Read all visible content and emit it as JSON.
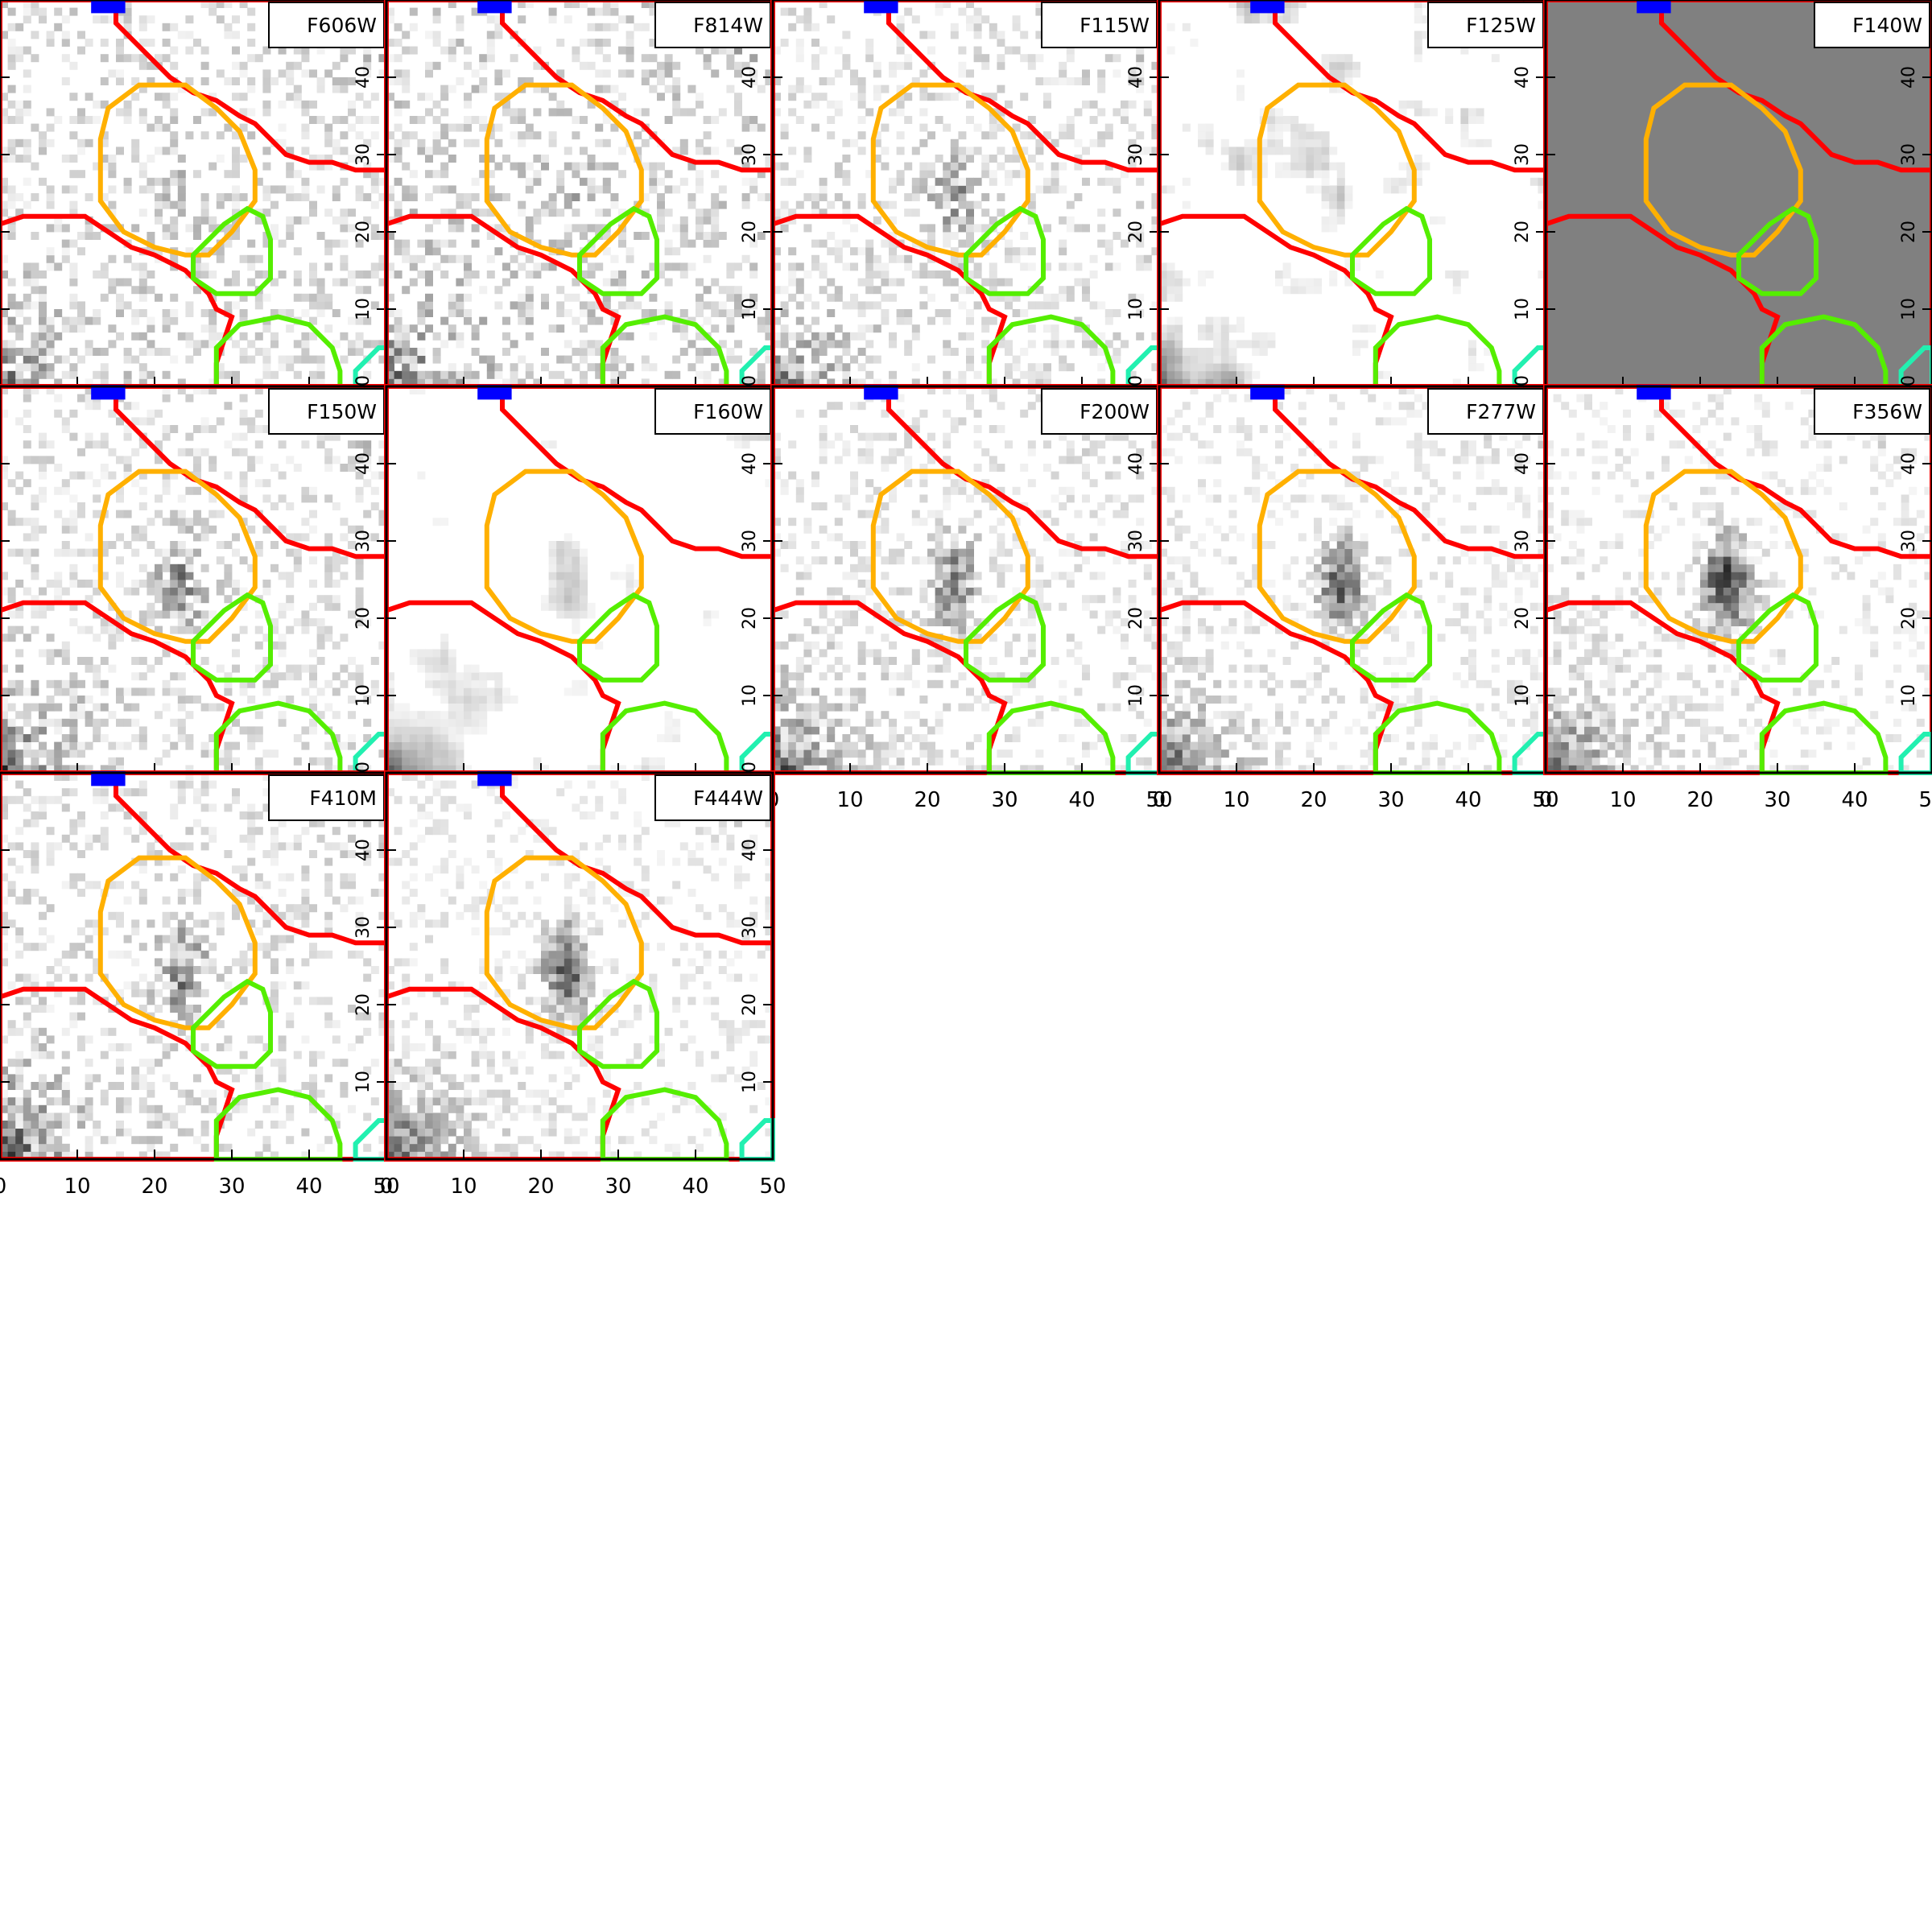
{
  "figure": {
    "description_free": true,
    "colors": {
      "background": "#ffffff",
      "frame": "#000000",
      "segmap_red": "#ff0000",
      "segmap_orange": "#ffb000",
      "segmap_green": "#55ee00",
      "segmap_blue": "#0000ff",
      "segmap_cyan": "#22f0b0",
      "label_box": "#ffffff",
      "f140w_fill": "#808080"
    }
  },
  "chart_data": [
    {
      "type": "heatmap",
      "panel_label": "F606W",
      "xlim": [
        0,
        50
      ],
      "ylim": [
        0,
        50
      ],
      "noise_level": 0.45,
      "source_strength": 0.15,
      "corner_glow": 0.55,
      "smooth": false,
      "flat": false
    },
    {
      "type": "heatmap",
      "panel_label": "F814W",
      "xlim": [
        0,
        50
      ],
      "ylim": [
        0,
        50
      ],
      "noise_level": 0.5,
      "source_strength": 0.15,
      "corner_glow": 0.6,
      "smooth": false,
      "flat": false
    },
    {
      "type": "heatmap",
      "panel_label": "F115W",
      "xlim": [
        0,
        50
      ],
      "ylim": [
        0,
        50
      ],
      "noise_level": 0.4,
      "source_strength": 0.4,
      "corner_glow": 0.65,
      "smooth": false,
      "flat": false
    },
    {
      "type": "heatmap",
      "panel_label": "F125W",
      "xlim": [
        0,
        50
      ],
      "ylim": [
        0,
        50
      ],
      "noise_level": 0.35,
      "source_strength": 0.3,
      "corner_glow": 0.7,
      "smooth": true,
      "flat": false
    },
    {
      "type": "heatmap",
      "panel_label": "F140W",
      "xlim": [
        0,
        50
      ],
      "ylim": [
        0,
        50
      ],
      "noise_level": 0,
      "source_strength": 0,
      "corner_glow": 0,
      "smooth": false,
      "flat": true
    },
    {
      "type": "heatmap",
      "panel_label": "F150W",
      "xlim": [
        0,
        50
      ],
      "ylim": [
        0,
        50
      ],
      "noise_level": 0.4,
      "source_strength": 0.45,
      "corner_glow": 0.75,
      "smooth": false,
      "flat": false
    },
    {
      "type": "heatmap",
      "panel_label": "F160W",
      "xlim": [
        0,
        50
      ],
      "ylim": [
        0,
        50
      ],
      "noise_level": 0.25,
      "source_strength": 0.35,
      "corner_glow": 0.8,
      "smooth": true,
      "flat": false
    },
    {
      "type": "heatmap",
      "panel_label": "F200W",
      "xlim": [
        0,
        50
      ],
      "ylim": [
        0,
        50
      ],
      "noise_level": 0.35,
      "source_strength": 0.55,
      "corner_glow": 0.8,
      "smooth": false,
      "flat": false
    },
    {
      "type": "heatmap",
      "panel_label": "F277W",
      "xlim": [
        0,
        50
      ],
      "ylim": [
        0,
        50
      ],
      "noise_level": 0.3,
      "source_strength": 0.65,
      "corner_glow": 0.85,
      "smooth": false,
      "flat": false
    },
    {
      "type": "heatmap",
      "panel_label": "F356W",
      "xlim": [
        0,
        50
      ],
      "ylim": [
        0,
        50
      ],
      "noise_level": 0.3,
      "source_strength": 0.85,
      "corner_glow": 0.9,
      "smooth": false,
      "flat": false
    },
    {
      "type": "heatmap",
      "panel_label": "F410M",
      "xlim": [
        0,
        50
      ],
      "ylim": [
        0,
        50
      ],
      "noise_level": 0.4,
      "source_strength": 0.5,
      "corner_glow": 0.9,
      "smooth": false,
      "flat": false
    },
    {
      "type": "heatmap",
      "panel_label": "F444W",
      "xlim": [
        0,
        50
      ],
      "ylim": [
        0,
        50
      ],
      "noise_level": 0.3,
      "source_strength": 0.75,
      "corner_glow": 0.9,
      "smooth": false,
      "flat": false
    }
  ],
  "axes": {
    "ticks": [
      0,
      10,
      20,
      30,
      40,
      50
    ],
    "tick_labels": [
      "0",
      "10",
      "20",
      "30",
      "40",
      "50"
    ]
  }
}
